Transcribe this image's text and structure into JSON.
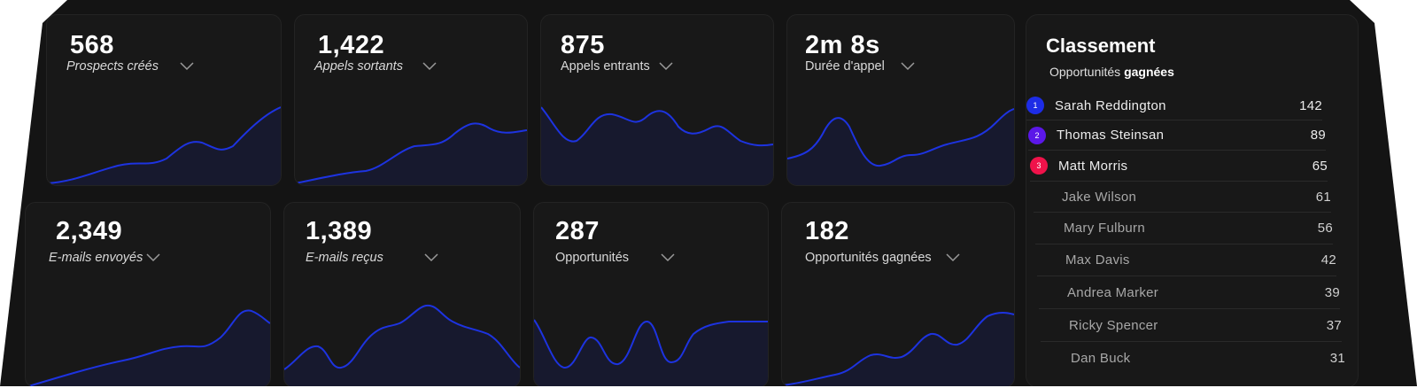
{
  "colors": {
    "background": "#141414",
    "card": "#181818",
    "line": "#1d33e0",
    "badge_1": "#1d2ce6",
    "badge_2": "#5b17e8",
    "badge_3": "#f0124a"
  },
  "metrics": [
    {
      "value": "568",
      "label": "Prospects créés",
      "icon": "chevron-down-icon"
    },
    {
      "value": "1,422",
      "label": "Appels sortants",
      "icon": "chevron-down-icon"
    },
    {
      "value": "875",
      "label": "Appels entrants",
      "icon": "chevron-down-icon"
    },
    {
      "value": "2m 8s",
      "label": "Durée d'appel",
      "icon": "chevron-down-icon"
    },
    {
      "value": "2,349",
      "label": "E-mails envoyés",
      "icon": "chevron-down-icon"
    },
    {
      "value": "1,389",
      "label": "E-mails reçus",
      "icon": "chevron-down-icon"
    },
    {
      "value": "287",
      "label": "Opportunités",
      "icon": "chevron-down-icon"
    },
    {
      "value": "182",
      "label": "Opportunités gagnées",
      "icon": "chevron-down-icon"
    }
  ],
  "leaderboard": {
    "title": "Classement",
    "subtitle_prefix": "Opportunités",
    "subtitle_bold": "gagnées",
    "entries": [
      {
        "rank": "1",
        "name": "Sarah Reddington",
        "score": "142"
      },
      {
        "rank": "2",
        "name": "Thomas Steinsan",
        "score": "89"
      },
      {
        "rank": "3",
        "name": "Matt Morris",
        "score": "65"
      },
      {
        "rank": "",
        "name": "Jake Wilson",
        "score": "61"
      },
      {
        "rank": "",
        "name": "Mary Fulburn",
        "score": "56"
      },
      {
        "rank": "",
        "name": "Max Davis",
        "score": "42"
      },
      {
        "rank": "",
        "name": "Andrea Marker",
        "score": "39"
      },
      {
        "rank": "",
        "name": "Ricky Spencer",
        "score": "37"
      },
      {
        "rank": "",
        "name": "Dan Buck",
        "score": "31"
      }
    ]
  }
}
